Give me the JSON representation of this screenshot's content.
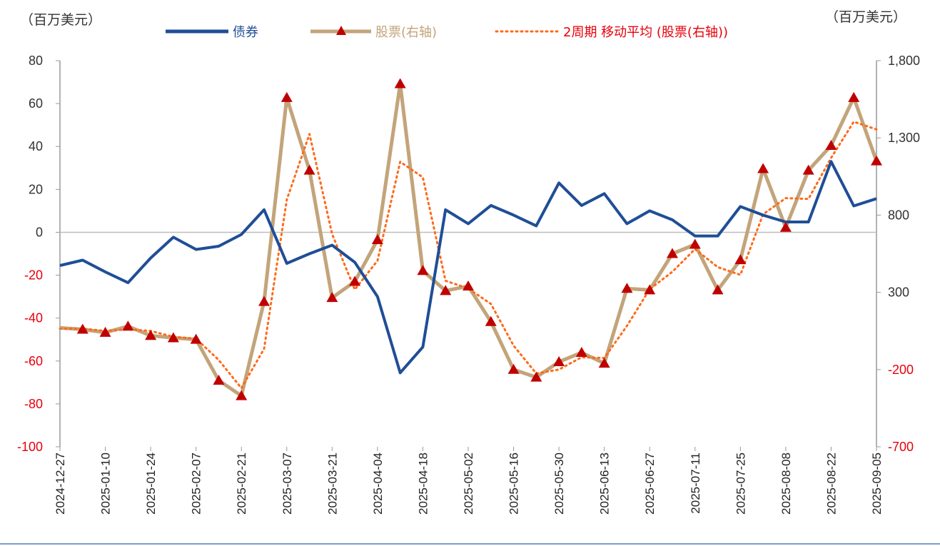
{
  "chart_data": {
    "type": "line",
    "left_unit": "（百万美元）",
    "right_unit": "（百万美元）",
    "left_axis": {
      "min": -100,
      "max": 80,
      "step": 20,
      "ticks": [
        "80",
        "60",
        "40",
        "20",
        "0",
        "-20",
        "-40",
        "-60",
        "-80",
        "-100"
      ]
    },
    "right_axis": {
      "min": -700,
      "max": 1800,
      "step": 500,
      "ticks": [
        "1,800",
        "1,300",
        "800",
        "300",
        "-200",
        "-700"
      ]
    },
    "x_labels": [
      "2024-12-27",
      "2025-01-10",
      "2025-01-24",
      "2025-02-07",
      "2025-02-21",
      "2025-03-07",
      "2025-03-21",
      "2025-04-04",
      "2025-04-18",
      "2025-05-02",
      "2025-05-16",
      "2025-05-30",
      "2025-06-13",
      "2025-06-27",
      "2025-07-11",
      "2025-07-25",
      "2025-08-08",
      "2025-08-22",
      "2025-09-05"
    ],
    "x": [
      "2024-12-27",
      "2025-01-03",
      "2025-01-10",
      "2025-01-17",
      "2025-01-24",
      "2025-01-31",
      "2025-02-07",
      "2025-02-14",
      "2025-02-21",
      "2025-02-28",
      "2025-03-07",
      "2025-03-14",
      "2025-03-21",
      "2025-03-28",
      "2025-04-04",
      "2025-04-11",
      "2025-04-18",
      "2025-04-25",
      "2025-05-02",
      "2025-05-09",
      "2025-05-16",
      "2025-05-23",
      "2025-05-30",
      "2025-06-06",
      "2025-06-13",
      "2025-06-20",
      "2025-06-27",
      "2025-07-04",
      "2025-07-11",
      "2025-07-18",
      "2025-07-25",
      "2025-08-01",
      "2025-08-08",
      "2025-08-15",
      "2025-08-22",
      "2025-08-29",
      "2025-09-05"
    ],
    "series": [
      {
        "name": "债券",
        "axis": "left",
        "color": "#1f4e96",
        "values": [
          -15.5,
          -13,
          -18.5,
          -23.5,
          -12,
          -2.3,
          -8,
          -6.5,
          -1,
          10.5,
          -14.5,
          -10,
          -6,
          -14,
          -30,
          -65.5,
          -53.5,
          10.5,
          4,
          12.5,
          8,
          3,
          23,
          12.5,
          18,
          4,
          10,
          5.8,
          -1.7,
          -1.7,
          12,
          8,
          4.8,
          4.8,
          33,
          12.3,
          15.7
        ]
      },
      {
        "name": "股票(右轴)",
        "axis": "right",
        "color": "#c3a47a",
        "marker": "triangle",
        "marker_color": "#c00000",
        "values": [
          70,
          60,
          40,
          80,
          20,
          5,
          -5,
          -270,
          -370,
          240,
          1560,
          1090,
          265,
          370,
          640,
          1650,
          440,
          310,
          340,
          110,
          -200,
          -250,
          -150,
          -90,
          -160,
          325,
          315,
          550,
          610,
          315,
          510,
          1100,
          720,
          1090,
          1250,
          1560,
          1150
        ]
      },
      {
        "name": "2周期 移动平均 (股票(右轴))",
        "axis": "right",
        "color": "#ff6a1a",
        "dash": "dotted",
        "values": [
          65,
          65,
          50,
          60,
          50,
          12,
          0,
          -138,
          -320,
          -65,
          900,
          1325,
          678,
          318,
          505,
          1145,
          1045,
          375,
          325,
          225,
          -45,
          -225,
          -200,
          -120,
          -125,
          83,
          320,
          433,
          580,
          463,
          413,
          805,
          910,
          905,
          1170,
          1405,
          1355
        ]
      }
    ],
    "legend_position": "top"
  }
}
